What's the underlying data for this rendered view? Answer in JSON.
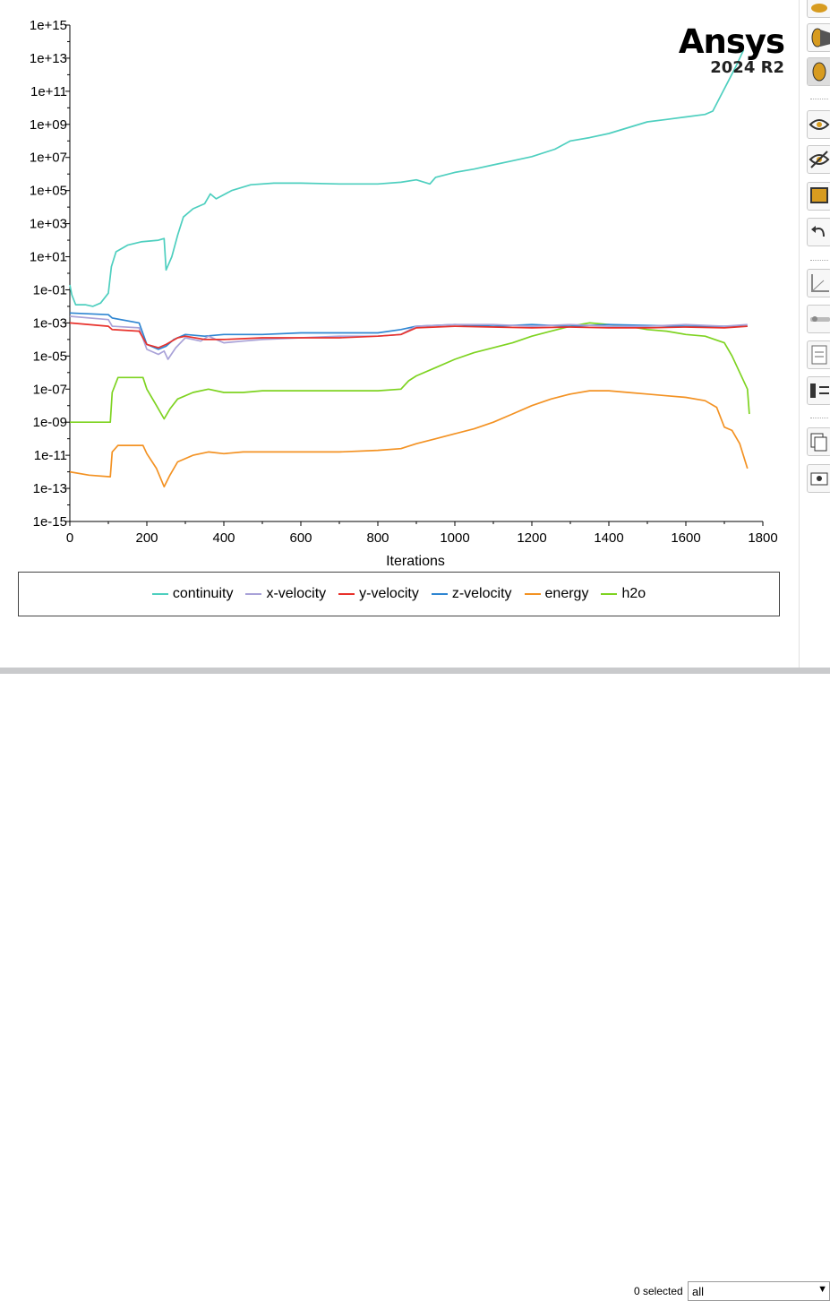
{
  "branding": {
    "name": "Ansys",
    "version": "2024 R2"
  },
  "chart_data": {
    "type": "line",
    "title": "",
    "xlabel": "Iterations",
    "ylabel": "",
    "yscale": "log",
    "xlim": [
      0,
      1800
    ],
    "ylim_exp": [
      -15,
      15
    ],
    "x_ticks": [
      "0",
      "200",
      "400",
      "600",
      "800",
      "1000",
      "1200",
      "1400",
      "1600",
      "1800"
    ],
    "y_ticks": [
      "1e+15",
      "1e+13",
      "1e+11",
      "1e+09",
      "1e+07",
      "1e+05",
      "1e+03",
      "1e+01",
      "1e-01",
      "1e-03",
      "1e-05",
      "1e-07",
      "1e-09",
      "1e-11",
      "1e-13",
      "1e-15"
    ],
    "legend_position": "bottom",
    "series": [
      {
        "name": "continuity",
        "color": "#4ecfbf",
        "points_log10": [
          [
            0,
            -0.7
          ],
          [
            5,
            -1.3
          ],
          [
            15,
            -1.9
          ],
          [
            40,
            -1.9
          ],
          [
            60,
            -2.0
          ],
          [
            80,
            -1.8
          ],
          [
            100,
            -1.2
          ],
          [
            108,
            0.4
          ],
          [
            120,
            1.3
          ],
          [
            150,
            1.7
          ],
          [
            185,
            1.9
          ],
          [
            230,
            2.0
          ],
          [
            245,
            2.1
          ],
          [
            250,
            0.2
          ],
          [
            265,
            1.0
          ],
          [
            280,
            2.3
          ],
          [
            295,
            3.4
          ],
          [
            320,
            3.9
          ],
          [
            350,
            4.2
          ],
          [
            365,
            4.8
          ],
          [
            380,
            4.5
          ],
          [
            420,
            5.0
          ],
          [
            470,
            5.35
          ],
          [
            530,
            5.45
          ],
          [
            600,
            5.45
          ],
          [
            700,
            5.4
          ],
          [
            800,
            5.4
          ],
          [
            860,
            5.5
          ],
          [
            900,
            5.65
          ],
          [
            935,
            5.4
          ],
          [
            950,
            5.8
          ],
          [
            1000,
            6.1
          ],
          [
            1050,
            6.3
          ],
          [
            1100,
            6.55
          ],
          [
            1150,
            6.8
          ],
          [
            1200,
            7.05
          ],
          [
            1260,
            7.5
          ],
          [
            1300,
            8.0
          ],
          [
            1350,
            8.2
          ],
          [
            1400,
            8.45
          ],
          [
            1450,
            8.8
          ],
          [
            1500,
            9.15
          ],
          [
            1550,
            9.3
          ],
          [
            1600,
            9.45
          ],
          [
            1650,
            9.6
          ],
          [
            1670,
            9.8
          ],
          [
            1690,
            10.7
          ],
          [
            1710,
            11.6
          ],
          [
            1730,
            12.5
          ],
          [
            1750,
            13.5
          ]
        ]
      },
      {
        "name": "x-velocity",
        "color": "#a9a2d8",
        "points_log10": [
          [
            0,
            -2.6
          ],
          [
            100,
            -2.8
          ],
          [
            110,
            -3.2
          ],
          [
            180,
            -3.3
          ],
          [
            200,
            -4.6
          ],
          [
            230,
            -4.9
          ],
          [
            245,
            -4.7
          ],
          [
            255,
            -5.2
          ],
          [
            275,
            -4.5
          ],
          [
            300,
            -3.9
          ],
          [
            340,
            -4.1
          ],
          [
            360,
            -3.8
          ],
          [
            400,
            -4.2
          ],
          [
            450,
            -4.1
          ],
          [
            500,
            -4.0
          ],
          [
            600,
            -3.9
          ],
          [
            700,
            -3.8
          ],
          [
            800,
            -3.8
          ],
          [
            860,
            -3.7
          ],
          [
            900,
            -3.2
          ],
          [
            1000,
            -3.1
          ],
          [
            1100,
            -3.1
          ],
          [
            1200,
            -3.2
          ],
          [
            1300,
            -3.1
          ],
          [
            1400,
            -3.2
          ],
          [
            1500,
            -3.2
          ],
          [
            1600,
            -3.1
          ],
          [
            1700,
            -3.2
          ],
          [
            1760,
            -3.1
          ]
        ]
      },
      {
        "name": "y-velocity",
        "color": "#e8322c",
        "points_log10": [
          [
            0,
            -3.0
          ],
          [
            100,
            -3.2
          ],
          [
            110,
            -3.4
          ],
          [
            180,
            -3.5
          ],
          [
            200,
            -4.3
          ],
          [
            230,
            -4.5
          ],
          [
            250,
            -4.3
          ],
          [
            280,
            -3.9
          ],
          [
            300,
            -3.8
          ],
          [
            350,
            -4.0
          ],
          [
            400,
            -4.0
          ],
          [
            500,
            -3.9
          ],
          [
            600,
            -3.9
          ],
          [
            700,
            -3.9
          ],
          [
            800,
            -3.8
          ],
          [
            860,
            -3.7
          ],
          [
            900,
            -3.3
          ],
          [
            1000,
            -3.2
          ],
          [
            1100,
            -3.25
          ],
          [
            1200,
            -3.3
          ],
          [
            1300,
            -3.25
          ],
          [
            1400,
            -3.3
          ],
          [
            1500,
            -3.3
          ],
          [
            1600,
            -3.25
          ],
          [
            1700,
            -3.3
          ],
          [
            1760,
            -3.2
          ]
        ]
      },
      {
        "name": "z-velocity",
        "color": "#2f86d2",
        "points_log10": [
          [
            0,
            -2.4
          ],
          [
            100,
            -2.5
          ],
          [
            110,
            -2.7
          ],
          [
            180,
            -3.0
          ],
          [
            200,
            -4.3
          ],
          [
            230,
            -4.6
          ],
          [
            250,
            -4.4
          ],
          [
            270,
            -4.0
          ],
          [
            300,
            -3.7
          ],
          [
            350,
            -3.8
          ],
          [
            400,
            -3.7
          ],
          [
            500,
            -3.7
          ],
          [
            600,
            -3.6
          ],
          [
            700,
            -3.6
          ],
          [
            800,
            -3.6
          ],
          [
            860,
            -3.4
          ],
          [
            900,
            -3.2
          ],
          [
            1000,
            -3.1
          ],
          [
            1100,
            -3.2
          ],
          [
            1200,
            -3.1
          ],
          [
            1300,
            -3.2
          ],
          [
            1400,
            -3.1
          ],
          [
            1500,
            -3.15
          ],
          [
            1600,
            -3.2
          ],
          [
            1700,
            -3.2
          ],
          [
            1760,
            -3.2
          ]
        ]
      },
      {
        "name": "energy",
        "color": "#f39223",
        "points_log10": [
          [
            0,
            -12.0
          ],
          [
            50,
            -12.2
          ],
          [
            105,
            -12.3
          ],
          [
            110,
            -10.8
          ],
          [
            125,
            -10.4
          ],
          [
            190,
            -10.4
          ],
          [
            200,
            -10.9
          ],
          [
            225,
            -11.8
          ],
          [
            245,
            -12.9
          ],
          [
            260,
            -12.2
          ],
          [
            280,
            -11.4
          ],
          [
            320,
            -11.0
          ],
          [
            360,
            -10.8
          ],
          [
            400,
            -10.9
          ],
          [
            450,
            -10.8
          ],
          [
            500,
            -10.8
          ],
          [
            600,
            -10.8
          ],
          [
            700,
            -10.8
          ],
          [
            800,
            -10.7
          ],
          [
            860,
            -10.6
          ],
          [
            900,
            -10.3
          ],
          [
            950,
            -10.0
          ],
          [
            1000,
            -9.7
          ],
          [
            1050,
            -9.4
          ],
          [
            1100,
            -9.0
          ],
          [
            1150,
            -8.5
          ],
          [
            1200,
            -8.0
          ],
          [
            1250,
            -7.6
          ],
          [
            1300,
            -7.3
          ],
          [
            1350,
            -7.1
          ],
          [
            1400,
            -7.1
          ],
          [
            1450,
            -7.2
          ],
          [
            1500,
            -7.3
          ],
          [
            1550,
            -7.4
          ],
          [
            1600,
            -7.5
          ],
          [
            1650,
            -7.7
          ],
          [
            1680,
            -8.1
          ],
          [
            1700,
            -9.3
          ],
          [
            1720,
            -9.5
          ],
          [
            1740,
            -10.3
          ],
          [
            1760,
            -11.8
          ]
        ]
      },
      {
        "name": "h2o",
        "color": "#7ed321",
        "points_log10": [
          [
            0,
            -9.0
          ],
          [
            50,
            -9.0
          ],
          [
            105,
            -9.0
          ],
          [
            110,
            -7.2
          ],
          [
            125,
            -6.3
          ],
          [
            190,
            -6.3
          ],
          [
            200,
            -7.0
          ],
          [
            225,
            -8.0
          ],
          [
            245,
            -8.8
          ],
          [
            260,
            -8.2
          ],
          [
            280,
            -7.6
          ],
          [
            320,
            -7.2
          ],
          [
            360,
            -7.0
          ],
          [
            400,
            -7.2
          ],
          [
            450,
            -7.2
          ],
          [
            500,
            -7.1
          ],
          [
            600,
            -7.1
          ],
          [
            700,
            -7.1
          ],
          [
            800,
            -7.1
          ],
          [
            860,
            -7.0
          ],
          [
            880,
            -6.5
          ],
          [
            900,
            -6.2
          ],
          [
            950,
            -5.7
          ],
          [
            1000,
            -5.2
          ],
          [
            1050,
            -4.8
          ],
          [
            1100,
            -4.5
          ],
          [
            1150,
            -4.2
          ],
          [
            1200,
            -3.8
          ],
          [
            1250,
            -3.5
          ],
          [
            1300,
            -3.2
          ],
          [
            1350,
            -3.0
          ],
          [
            1400,
            -3.1
          ],
          [
            1450,
            -3.2
          ],
          [
            1500,
            -3.4
          ],
          [
            1550,
            -3.5
          ],
          [
            1600,
            -3.7
          ],
          [
            1650,
            -3.8
          ],
          [
            1700,
            -4.2
          ],
          [
            1720,
            -5.0
          ],
          [
            1740,
            -6.0
          ],
          [
            1760,
            -7.0
          ],
          [
            1765,
            -8.5
          ]
        ]
      }
    ]
  },
  "toolbar": {
    "buttons": [
      "ellipse-icon",
      "half-fill-icon",
      "mesh-icon",
      "visible-icon",
      "hidden-icon",
      "window-icon",
      "undo-icon",
      "axes-icon",
      "slider-icon",
      "page-icon",
      "split-icon",
      "duplicate-icon",
      "camera-icon"
    ]
  },
  "footer": {
    "selected_text": "0 selected",
    "filter_value": "all"
  }
}
